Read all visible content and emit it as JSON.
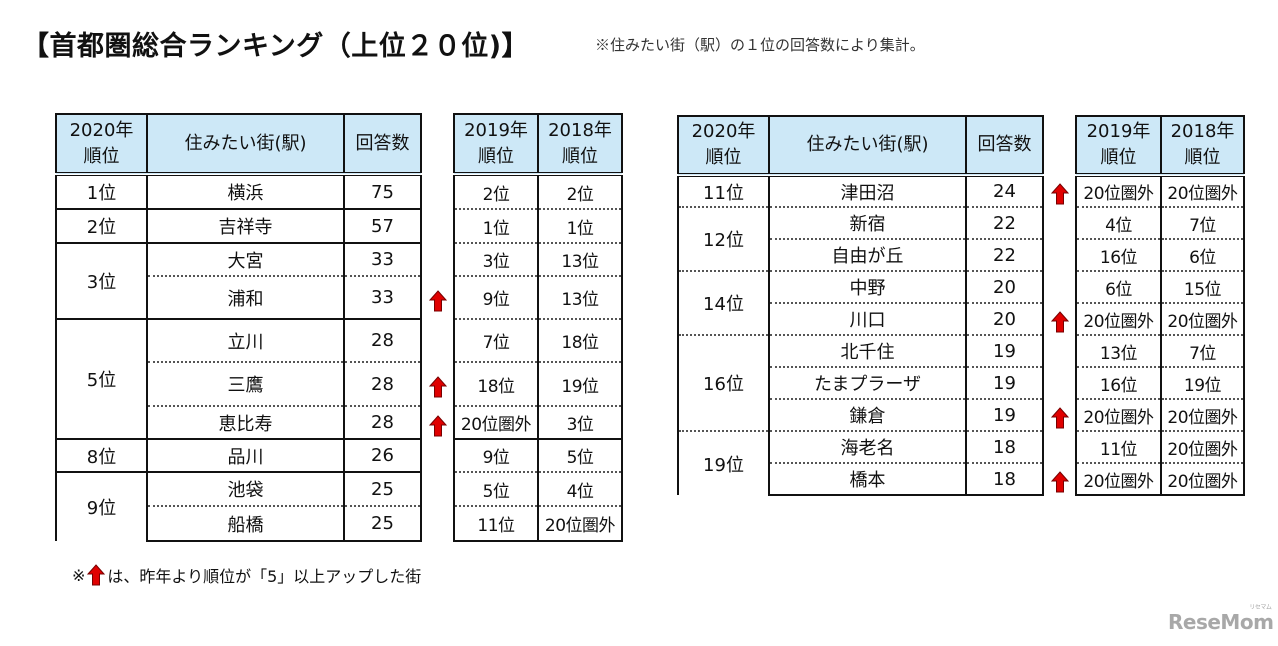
{
  "title": "【首都圏総合ランキング（上位２０位)】",
  "note_top": "※住みたい街（駅）の１位の回答数により集計。",
  "legend_note": {
    "prefix": "※",
    "icon": "red-up-arrow-icon",
    "text": "は、昨年より順位が「5」以上アップした街"
  },
  "logo": {
    "text": "ReseMom",
    "ruby": "リセマム"
  },
  "colors": {
    "header_bg": "#cde8f7",
    "arrow": "#e00000",
    "border": "#111111"
  },
  "headers": {
    "rank_2020": [
      "2020年",
      "順位"
    ],
    "station": "住みたい街(駅)",
    "votes": "回答数",
    "rank_2019": [
      "2019年",
      "順位"
    ],
    "rank_2018": [
      "2018年",
      "順位"
    ]
  },
  "left_table": {
    "rank_groups": [
      {
        "rank": "1位",
        "rows": 1
      },
      {
        "rank": "2位",
        "rows": 1
      },
      {
        "rank": "3位",
        "rows": 2
      },
      {
        "rank": "5位",
        "rows": 3
      },
      {
        "rank": "8位",
        "rows": 1
      },
      {
        "rank": "9位",
        "rows": 2
      }
    ],
    "rows": [
      {
        "station": "横浜",
        "votes": "75",
        "up": false,
        "rank_2019": "2位",
        "rank_2018": "2位"
      },
      {
        "station": "吉祥寺",
        "votes": "57",
        "up": false,
        "rank_2019": "1位",
        "rank_2018": "1位"
      },
      {
        "station": "大宮",
        "votes": "33",
        "up": false,
        "rank_2019": "3位",
        "rank_2018": "13位"
      },
      {
        "station": "浦和",
        "votes": "33",
        "up": true,
        "rank_2019": "9位",
        "rank_2018": "13位"
      },
      {
        "station": "立川",
        "votes": "28",
        "up": false,
        "rank_2019": "7位",
        "rank_2018": "18位"
      },
      {
        "station": "三鷹",
        "votes": "28",
        "up": true,
        "rank_2019": "18位",
        "rank_2018": "19位"
      },
      {
        "station": "恵比寿",
        "votes": "28",
        "up": true,
        "rank_2019": "20位圏外",
        "rank_2018": "3位"
      },
      {
        "station": "品川",
        "votes": "26",
        "up": false,
        "rank_2019": "9位",
        "rank_2018": "5位"
      },
      {
        "station": "池袋",
        "votes": "25",
        "up": false,
        "rank_2019": "5位",
        "rank_2018": "4位"
      },
      {
        "station": "船橋",
        "votes": "25",
        "up": false,
        "rank_2019": "11位",
        "rank_2018": "20位圏外"
      }
    ]
  },
  "right_table": {
    "rank_groups": [
      {
        "rank": "11位",
        "rows": 1
      },
      {
        "rank": "12位",
        "rows": 2
      },
      {
        "rank": "14位",
        "rows": 2
      },
      {
        "rank": "16位",
        "rows": 3
      },
      {
        "rank": "19位",
        "rows": 2
      }
    ],
    "rows": [
      {
        "station": "津田沼",
        "votes": "24",
        "up": true,
        "rank_2019": "20位圏外",
        "rank_2018": "20位圏外"
      },
      {
        "station": "新宿",
        "votes": "22",
        "up": false,
        "rank_2019": "4位",
        "rank_2018": "7位"
      },
      {
        "station": "自由が丘",
        "votes": "22",
        "up": false,
        "rank_2019": "16位",
        "rank_2018": "6位"
      },
      {
        "station": "中野",
        "votes": "20",
        "up": false,
        "rank_2019": "6位",
        "rank_2018": "15位"
      },
      {
        "station": "川口",
        "votes": "20",
        "up": true,
        "rank_2019": "20位圏外",
        "rank_2018": "20位圏外"
      },
      {
        "station": "北千住",
        "votes": "19",
        "up": false,
        "rank_2019": "13位",
        "rank_2018": "7位"
      },
      {
        "station": "たまプラーザ",
        "votes": "19",
        "up": false,
        "rank_2019": "16位",
        "rank_2018": "19位"
      },
      {
        "station": "鎌倉",
        "votes": "19",
        "up": true,
        "rank_2019": "20位圏外",
        "rank_2018": "20位圏外"
      },
      {
        "station": "海老名",
        "votes": "18",
        "up": false,
        "rank_2019": "11位",
        "rank_2018": "20位圏外"
      },
      {
        "station": "橋本",
        "votes": "18",
        "up": true,
        "rank_2019": "20位圏外",
        "rank_2018": "20位圏外"
      }
    ]
  }
}
